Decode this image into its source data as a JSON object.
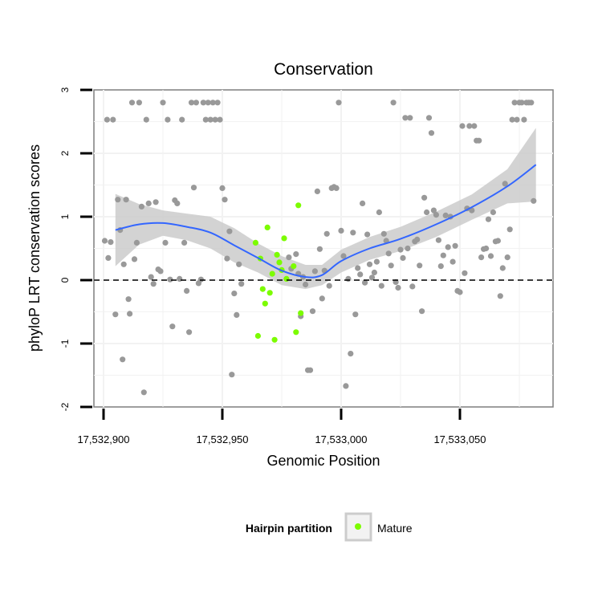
{
  "chart_data": {
    "type": "scatter",
    "title": "Conservation",
    "xlabel": "Genomic Position",
    "ylabel": "phyloP LRT conservation scores",
    "xlim": [
      17532895,
      17533090
    ],
    "ylim": [
      -2,
      3
    ],
    "x_ticks": [
      17532900,
      17532950,
      17533000,
      17533050
    ],
    "x_tick_labels": [
      "17,532,900",
      "17,532,950",
      "17,533,000",
      "17,533,050"
    ],
    "y_ticks": [
      -2,
      -1,
      0,
      1,
      2,
      3
    ],
    "y_tick_labels": [
      "-2",
      "-1",
      "0",
      "1",
      "2",
      "3"
    ],
    "grid": true,
    "reference_line": {
      "y": 0,
      "style": "dashed",
      "color": "#000000"
    },
    "legend": {
      "title": "Hairpin partition",
      "position": "bottom",
      "entries": [
        "Mature"
      ]
    },
    "colors": {
      "other": "#999999",
      "mature": "#7CFC00",
      "smooth": "#3366FF",
      "band": "#C8C8C8",
      "panel_border": "#7F7F7F",
      "grid": "#F2F2F2"
    },
    "series": [
      {
        "group": "other",
        "points": [
          [
            17532900.5,
            0.62
          ],
          [
            17532901.5,
            2.53
          ],
          [
            17532902,
            0.35
          ],
          [
            17532903,
            0.6
          ],
          [
            17532904,
            2.53
          ],
          [
            17532905,
            -0.54
          ],
          [
            17532906,
            1.27
          ],
          [
            17532907,
            0.79
          ],
          [
            17532908,
            -1.25
          ],
          [
            17532908.5,
            0.25
          ],
          [
            17532909.5,
            1.27
          ],
          [
            17532910.5,
            -0.3
          ],
          [
            17532911,
            -0.53
          ],
          [
            17532912,
            2.8
          ],
          [
            17532913,
            0.33
          ],
          [
            17532914,
            0.59
          ],
          [
            17532915,
            2.8
          ],
          [
            17532916,
            1.16
          ],
          [
            17532917,
            -1.77
          ],
          [
            17532918,
            2.53
          ],
          [
            17532919,
            1.21
          ],
          [
            17532920,
            0.05
          ],
          [
            17532921,
            -0.06
          ],
          [
            17532922,
            1.23
          ],
          [
            17532923,
            0.17
          ],
          [
            17532924,
            0.14
          ],
          [
            17532925,
            2.8
          ],
          [
            17532926,
            0.59
          ],
          [
            17532927,
            2.53
          ],
          [
            17532928,
            0.01
          ],
          [
            17532929,
            -0.73
          ],
          [
            17532930,
            1.26
          ],
          [
            17532931,
            1.21
          ],
          [
            17532932,
            0.02
          ],
          [
            17532933,
            2.53
          ],
          [
            17532934,
            0.59
          ],
          [
            17532935,
            -0.17
          ],
          [
            17532936,
            -0.82
          ],
          [
            17532937,
            2.8
          ],
          [
            17532938,
            1.46
          ],
          [
            17532939,
            2.8
          ],
          [
            17532940,
            -0.05
          ],
          [
            17532941,
            0.01
          ],
          [
            17532942,
            2.8
          ],
          [
            17532943,
            2.53
          ],
          [
            17532944,
            2.8
          ],
          [
            17532945,
            2.53
          ],
          [
            17532946,
            2.8
          ],
          [
            17532947,
            2.53
          ],
          [
            17532948,
            2.8
          ],
          [
            17532949,
            2.53
          ],
          [
            17532950,
            1.45
          ],
          [
            17532951,
            1.27
          ],
          [
            17532952,
            0.34
          ],
          [
            17532953,
            0.77
          ],
          [
            17532954,
            -1.49
          ],
          [
            17532955,
            -0.21
          ],
          [
            17532956,
            -0.55
          ],
          [
            17532957,
            0.25
          ],
          [
            17532958,
            -0.06
          ],
          [
            17532978,
            0.36
          ],
          [
            17532979,
            0.18
          ],
          [
            17532981,
            0.41
          ],
          [
            17532982,
            0.1
          ],
          [
            17532983,
            -0.57
          ],
          [
            17532984,
            0.05
          ],
          [
            17532985,
            -0.07
          ],
          [
            17532986,
            -1.42
          ],
          [
            17532987,
            -1.42
          ],
          [
            17532988,
            -0.49
          ],
          [
            17532989,
            0.14
          ],
          [
            17532990,
            1.4
          ],
          [
            17532991,
            0.49
          ],
          [
            17532992,
            -0.29
          ],
          [
            17532993,
            0.15
          ],
          [
            17532994,
            0.73
          ],
          [
            17532995,
            -0.09
          ],
          [
            17532996,
            1.45
          ],
          [
            17532997,
            1.47
          ],
          [
            17532998,
            1.45
          ],
          [
            17532999,
            2.8
          ],
          [
            17533000,
            0.78
          ],
          [
            17533001,
            0.38
          ],
          [
            17533002,
            -1.67
          ],
          [
            17533003,
            0.02
          ],
          [
            17533004,
            -1.16
          ],
          [
            17533005,
            0.75
          ],
          [
            17533006,
            -0.54
          ],
          [
            17533007,
            0.19
          ],
          [
            17533008,
            0.09
          ],
          [
            17533009,
            1.21
          ],
          [
            17533010,
            -0.04
          ],
          [
            17533011,
            0.72
          ],
          [
            17533012,
            0.25
          ],
          [
            17533013,
            0.04
          ],
          [
            17533014,
            0.12
          ],
          [
            17533015,
            0.29
          ],
          [
            17533016,
            1.07
          ],
          [
            17533017,
            -0.09
          ],
          [
            17533018,
            0.73
          ],
          [
            17533019,
            0.62
          ],
          [
            17533020,
            0.42
          ],
          [
            17533021,
            0.23
          ],
          [
            17533022,
            2.8
          ],
          [
            17533023,
            -0.03
          ],
          [
            17533024,
            -0.12
          ],
          [
            17533025,
            0.48
          ],
          [
            17533026,
            0.35
          ],
          [
            17533027,
            2.56
          ],
          [
            17533028,
            0.5
          ],
          [
            17533029,
            2.56
          ],
          [
            17533030,
            -0.1
          ],
          [
            17533031,
            0.61
          ],
          [
            17533032,
            0.64
          ],
          [
            17533033,
            0.23
          ],
          [
            17533034,
            -0.49
          ],
          [
            17533035,
            1.3
          ],
          [
            17533036,
            1.07
          ],
          [
            17533037,
            2.56
          ],
          [
            17533038,
            2.32
          ],
          [
            17533039,
            1.1
          ],
          [
            17533040,
            1.03
          ],
          [
            17533041,
            0.63
          ],
          [
            17533042,
            0.22
          ],
          [
            17533043,
            0.39
          ],
          [
            17533044,
            1.02
          ],
          [
            17533045,
            0.52
          ],
          [
            17533046,
            1.0
          ],
          [
            17533047,
            0.29
          ],
          [
            17533048,
            0.54
          ],
          [
            17533049,
            -0.17
          ],
          [
            17533050,
            -0.19
          ],
          [
            17533051,
            2.43
          ],
          [
            17533052,
            0.11
          ],
          [
            17533053,
            1.13
          ],
          [
            17533054,
            2.43
          ],
          [
            17533055,
            1.1
          ],
          [
            17533056,
            2.43
          ],
          [
            17533057,
            2.2
          ],
          [
            17533058,
            2.2
          ],
          [
            17533059,
            0.36
          ],
          [
            17533060,
            0.49
          ],
          [
            17533061,
            0.5
          ],
          [
            17533062,
            0.96
          ],
          [
            17533063,
            0.38
          ],
          [
            17533064,
            1.07
          ],
          [
            17533065,
            0.61
          ],
          [
            17533066,
            0.62
          ],
          [
            17533067,
            -0.25
          ],
          [
            17533068,
            0.19
          ],
          [
            17533069,
            1.52
          ],
          [
            17533070,
            0.36
          ],
          [
            17533071,
            0.8
          ],
          [
            17533072,
            2.53
          ],
          [
            17533073,
            2.8
          ],
          [
            17533074,
            2.53
          ],
          [
            17533075,
            2.8
          ],
          [
            17533076,
            2.8
          ],
          [
            17533077,
            2.53
          ],
          [
            17533078,
            2.8
          ],
          [
            17533079,
            2.8
          ],
          [
            17533080,
            2.8
          ],
          [
            17533081,
            1.25
          ]
        ]
      },
      {
        "group": "mature",
        "name": "Mature",
        "points": [
          [
            17532964,
            0.59
          ],
          [
            17532965,
            -0.88
          ],
          [
            17532966,
            0.34
          ],
          [
            17532967,
            -0.14
          ],
          [
            17532968,
            -0.37
          ],
          [
            17532969,
            0.83
          ],
          [
            17532970,
            -0.2
          ],
          [
            17532971,
            0.1
          ],
          [
            17532972,
            -0.94
          ],
          [
            17532973,
            0.4
          ],
          [
            17532974,
            0.28
          ],
          [
            17532975,
            0.16
          ],
          [
            17532976,
            0.66
          ],
          [
            17532977,
            0.02
          ],
          [
            17532980,
            0.22
          ],
          [
            17532981,
            -0.82
          ],
          [
            17532982,
            1.18
          ],
          [
            17532983,
            -0.52
          ]
        ]
      }
    ],
    "smooth": {
      "method": "loess",
      "x": [
        17532905,
        17532915,
        17532925,
        17532935,
        17532945,
        17532955,
        17532965,
        17532975,
        17532985,
        17532992,
        17533000,
        17533012,
        17533025,
        17533040,
        17533055,
        17533070,
        17533082
      ],
      "y": [
        0.79,
        0.88,
        0.9,
        0.84,
        0.75,
        0.55,
        0.35,
        0.15,
        0.05,
        0.08,
        0.3,
        0.5,
        0.65,
        0.88,
        1.15,
        1.48,
        1.82
      ],
      "upper": [
        1.36,
        1.2,
        1.1,
        1.05,
        1.0,
        0.82,
        0.58,
        0.38,
        0.24,
        0.24,
        0.48,
        0.68,
        0.84,
        1.08,
        1.35,
        1.75,
        2.4
      ],
      "lower": [
        0.22,
        0.56,
        0.7,
        0.63,
        0.5,
        0.28,
        0.12,
        -0.08,
        -0.14,
        -0.08,
        0.12,
        0.32,
        0.46,
        0.68,
        0.95,
        1.21,
        1.24
      ]
    }
  }
}
